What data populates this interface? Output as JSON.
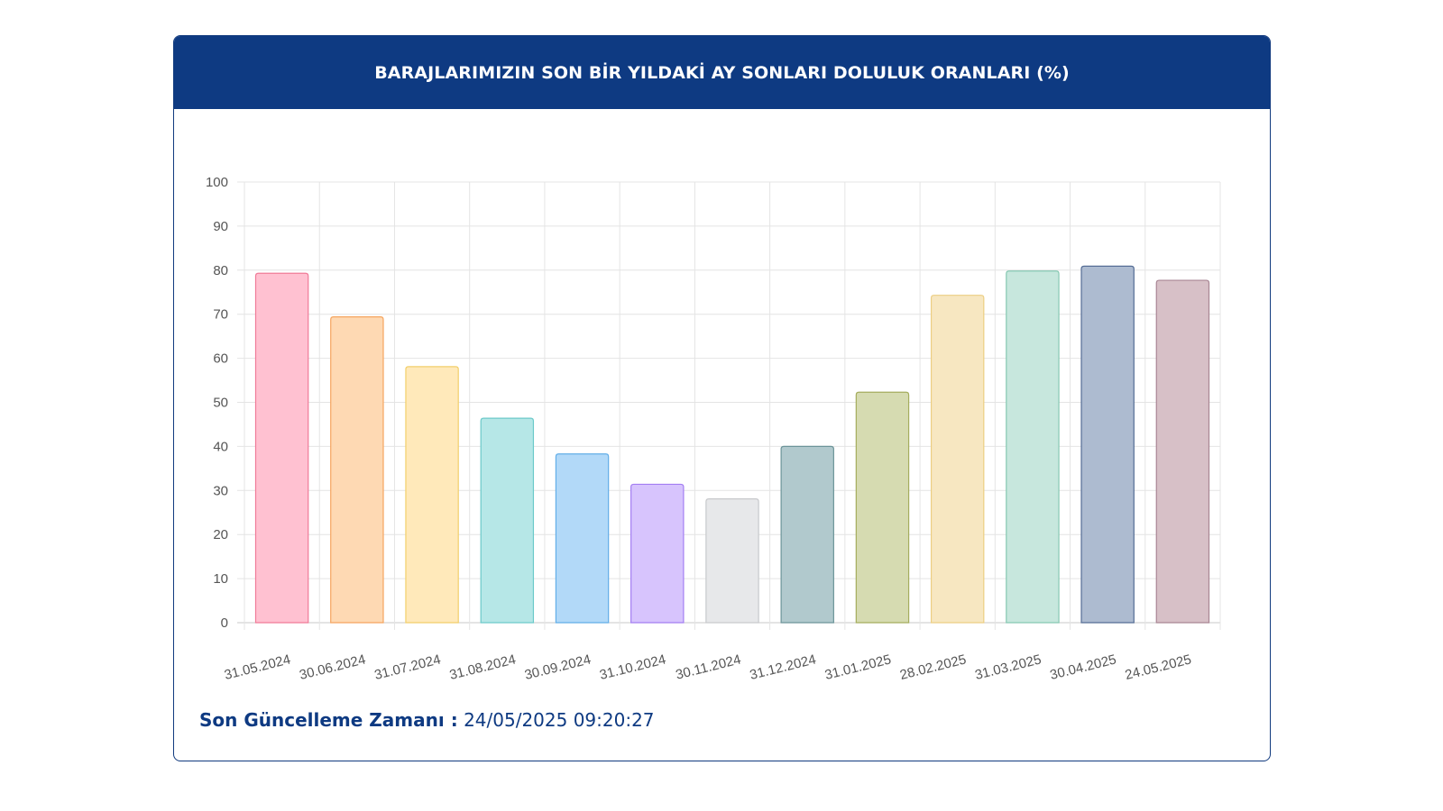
{
  "chart_data": {
    "type": "bar",
    "title": "BARAJLARIMIZIN SON BİR YILDAKİ AY SONLARI DOLULUK ORANLARI (%)",
    "categories": [
      "31.05.2024",
      "30.06.2024",
      "31.07.2024",
      "31.08.2024",
      "30.09.2024",
      "31.10.2024",
      "30.11.2024",
      "31.12.2024",
      "31.01.2025",
      "28.02.2025",
      "31.03.2025",
      "30.04.2025",
      "24.05.2025"
    ],
    "values": [
      79.3,
      69.4,
      58.1,
      46.4,
      38.3,
      31.4,
      28.1,
      40.0,
      52.3,
      74.3,
      79.8,
      80.9,
      77.7
    ],
    "ylim": [
      0,
      100
    ],
    "yticks": [
      0,
      10,
      20,
      30,
      40,
      50,
      60,
      70,
      80,
      90,
      100
    ],
    "grid": true,
    "legend": "none",
    "colors": {
      "fill": [
        "#ffc1d1",
        "#fed9b3",
        "#ffe9ba",
        "#b6e7e7",
        "#b2d9f8",
        "#d7c4fd",
        "#e7e8ea",
        "#b1c9cd",
        "#d6dbb1",
        "#f7e7c1",
        "#c7e7dd",
        "#adbbd0",
        "#d7c0c7"
      ],
      "stroke": [
        "#f07b98",
        "#f5a55f",
        "#f2cf6b",
        "#6ccaca",
        "#62aee8",
        "#a37ef2",
        "#c8c9cc",
        "#6c9499",
        "#a5ad5d",
        "#ecce83",
        "#86c8b2",
        "#556d95",
        "#a98694"
      ]
    }
  },
  "footer": {
    "label": "Son Güncelleme Zamanı :",
    "value": "24/05/2025 09:20:27"
  },
  "header_bg": "#0e3a82"
}
